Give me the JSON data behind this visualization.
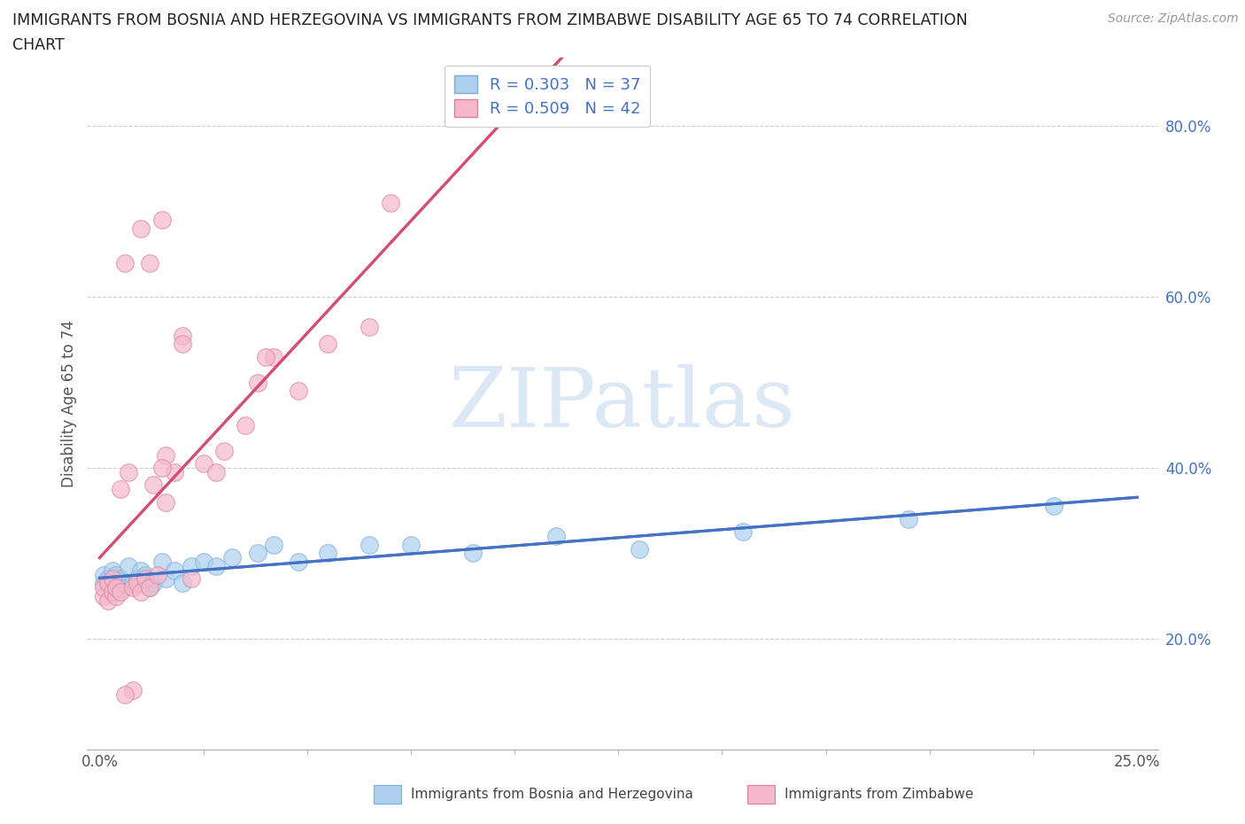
{
  "title_line1": "IMMIGRANTS FROM BOSNIA AND HERZEGOVINA VS IMMIGRANTS FROM ZIMBABWE DISABILITY AGE 65 TO 74 CORRELATION",
  "title_line2": "CHART",
  "source": "Source: ZipAtlas.com",
  "ylabel_left": "Disability Age 65 to 74",
  "ytick_labels": [
    "20.0%",
    "40.0%",
    "60.0%",
    "80.0%"
  ],
  "ytick_values": [
    0.2,
    0.4,
    0.6,
    0.8
  ],
  "xtick_labels": [
    "0.0%",
    "25.0%"
  ],
  "xtick_values": [
    0.0,
    0.25
  ],
  "xlim": [
    -0.003,
    0.255
  ],
  "ylim": [
    0.07,
    0.88
  ],
  "legend_r_n": [
    {
      "label": "R = 0.303   N = 37",
      "facecolor": "#aed0ee",
      "edgecolor": "#7badd4"
    },
    {
      "label": "R = 0.509   N = 42",
      "facecolor": "#f5b8cc",
      "edgecolor": "#e08098"
    }
  ],
  "legend_text_color": "#4472c4",
  "watermark_text": "ZIPatlas",
  "watermark_color": "#dce8f5",
  "series1_name": "Immigrants from Bosnia and Herzegovina",
  "series2_name": "Immigrants from Zimbabwe",
  "series1_facecolor": "#aed0ee",
  "series1_edgecolor": "#7badd4",
  "series2_facecolor": "#f5b8cc",
  "series2_edgecolor": "#e08098",
  "trendline1_color": "#4472c4",
  "trendline2_color": "#d45070",
  "trendline_dashed_color": "#cccccc",
  "grid_color": "#cccccc",
  "grid_linestyle": "--",
  "background_color": "#ffffff",
  "bosnia_x": [
    0.001,
    0.001,
    0.002,
    0.002,
    0.003,
    0.003,
    0.004,
    0.004,
    0.005,
    0.006,
    0.007,
    0.008,
    0.009,
    0.01,
    0.011,
    0.012,
    0.013,
    0.015,
    0.016,
    0.018,
    0.02,
    0.022,
    0.025,
    0.028,
    0.032,
    0.038,
    0.042,
    0.048,
    0.055,
    0.065,
    0.075,
    0.09,
    0.11,
    0.13,
    0.155,
    0.195,
    0.23
  ],
  "bosnia_y": [
    0.265,
    0.275,
    0.26,
    0.27,
    0.255,
    0.28,
    0.265,
    0.275,
    0.27,
    0.26,
    0.285,
    0.265,
    0.27,
    0.28,
    0.275,
    0.26,
    0.265,
    0.29,
    0.27,
    0.28,
    0.265,
    0.285,
    0.29,
    0.285,
    0.295,
    0.3,
    0.31,
    0.29,
    0.3,
    0.31,
    0.31,
    0.3,
    0.32,
    0.305,
    0.325,
    0.34,
    0.355
  ],
  "zimbabwe_x": [
    0.001,
    0.001,
    0.002,
    0.002,
    0.003,
    0.003,
    0.004,
    0.004,
    0.005,
    0.005,
    0.006,
    0.007,
    0.008,
    0.009,
    0.01,
    0.011,
    0.012,
    0.013,
    0.014,
    0.016,
    0.018,
    0.02,
    0.022,
    0.025,
    0.028,
    0.03,
    0.035,
    0.038,
    0.042,
    0.048,
    0.055,
    0.065,
    0.04,
    0.02,
    0.07,
    0.015,
    0.016,
    0.015,
    0.01,
    0.012,
    0.008,
    0.006
  ],
  "zimbabwe_y": [
    0.25,
    0.26,
    0.245,
    0.265,
    0.255,
    0.27,
    0.25,
    0.26,
    0.375,
    0.255,
    0.64,
    0.395,
    0.26,
    0.265,
    0.255,
    0.27,
    0.26,
    0.38,
    0.275,
    0.415,
    0.395,
    0.555,
    0.27,
    0.405,
    0.395,
    0.42,
    0.45,
    0.5,
    0.53,
    0.49,
    0.545,
    0.565,
    0.53,
    0.545,
    0.71,
    0.4,
    0.36,
    0.69,
    0.68,
    0.64,
    0.14,
    0.135
  ]
}
